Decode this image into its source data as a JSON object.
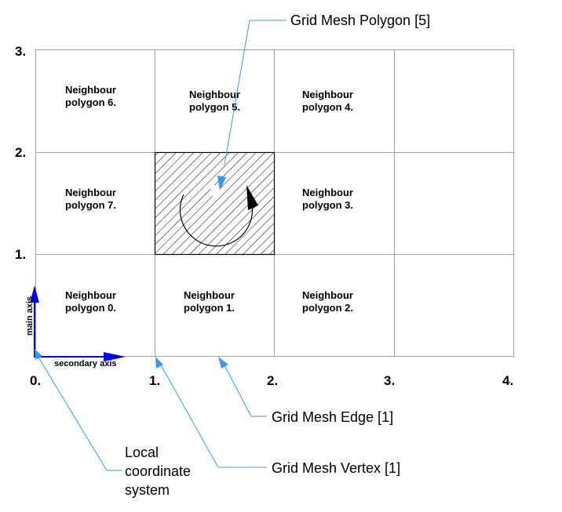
{
  "axes": {
    "x_ticks": [
      "0.",
      "1.",
      "2.",
      "3.",
      "4."
    ],
    "y_ticks": [
      "1.",
      "2.",
      "3."
    ],
    "main_axis_label": "main axis",
    "secondary_axis_label": "secondary axis"
  },
  "neighbours": [
    {
      "line1": "Neighbour",
      "line2": "polygon 0."
    },
    {
      "line1": "Neighbour",
      "line2": "polygon 1."
    },
    {
      "line1": "Neighbour",
      "line2": "polygon 2."
    },
    {
      "line1": "Neighbour",
      "line2": "polygon 3."
    },
    {
      "line1": "Neighbour",
      "line2": "polygon 4."
    },
    {
      "line1": "Neighbour",
      "line2": "polygon 5."
    },
    {
      "line1": "Neighbour",
      "line2": "polygon 6."
    },
    {
      "line1": "Neighbour",
      "line2": "polygon 7."
    }
  ],
  "callouts": {
    "polygon": "Grid Mesh Polygon [5]",
    "edge": "Grid Mesh Edge [1]",
    "vertex": "Grid Mesh Vertex [1]",
    "local_cs": [
      "Local",
      "coordinate",
      "system"
    ]
  },
  "colors": {
    "grid_line": "#a0a0a0",
    "leader_line": "#3399ff",
    "axis_arrow": "#0000ff",
    "hatch": "#000000"
  }
}
